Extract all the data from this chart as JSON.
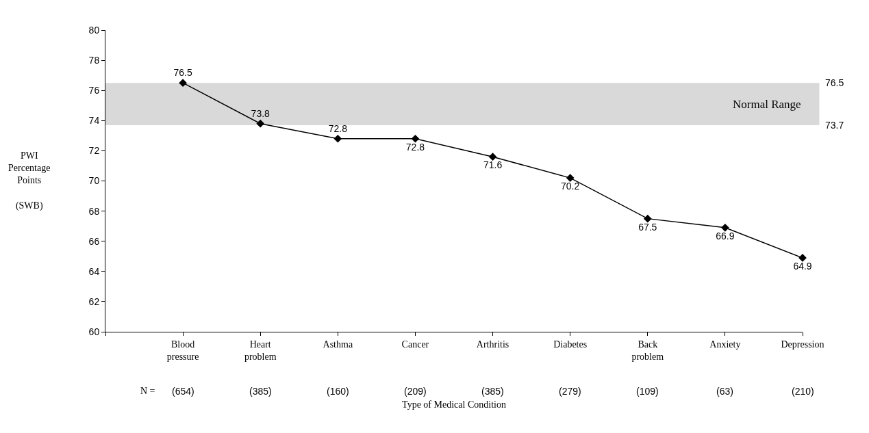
{
  "chart_data": {
    "type": "line",
    "categories": [
      null,
      "Blood pressure",
      "Heart problem",
      "Asthma",
      "Cancer",
      "Arthritis",
      "Diabetes",
      "Back problem",
      "Anxiety",
      "Depression"
    ],
    "series": [
      {
        "color": "#000000",
        "values": [
          null,
          76.5,
          73.8,
          72.8,
          72.8,
          71.6,
          70.2,
          67.5,
          66.9,
          64.9
        ]
      }
    ],
    "data_labels": true,
    "marker": "diamond",
    "line_style": "solid",
    "ylim": [
      60,
      80
    ],
    "yticks": [
      60,
      62,
      64,
      66,
      68,
      70,
      72,
      74,
      76,
      78,
      80
    ],
    "ylabel": "PWI\nPercentage\nPoints\n\n(SWB)",
    "xlabel": "Type of Medical Condition",
    "bands": [
      {
        "axis": "y",
        "from": 73.7,
        "to": 76.5,
        "label": "Normal Range",
        "color": "#d9d9d9"
      }
    ],
    "annotations": [
      "N =",
      "(654)",
      "(385)",
      "(160)",
      "(209)",
      "(385)",
      "(279)",
      "(109)",
      "(63)",
      "(210)",
      "76.5",
      "73.7"
    ],
    "grid": false
  }
}
